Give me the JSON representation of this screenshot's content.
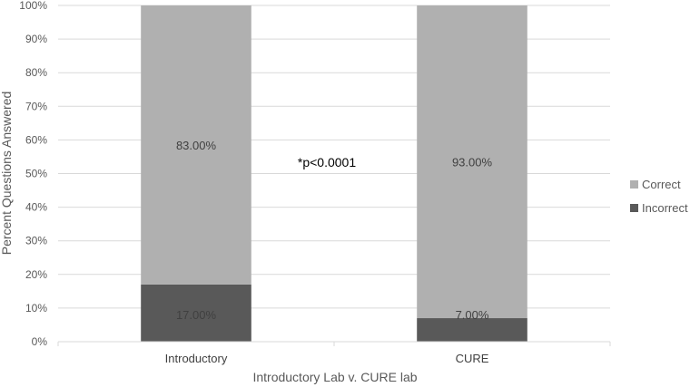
{
  "chart_data": {
    "type": "bar",
    "stacked": true,
    "categories": [
      "Introductory",
      "CURE"
    ],
    "series": [
      {
        "name": "Incorrect",
        "values": [
          17.0,
          7.0
        ],
        "labels": [
          "17.00%",
          "7.00%"
        ],
        "color": "#595959"
      },
      {
        "name": "Correct",
        "values": [
          83.0,
          93.0
        ],
        "labels": [
          "83.00%",
          "93.00%"
        ],
        "color": "#b0b0b0"
      }
    ],
    "xlabel": "Introductory Lab v. CURE lab",
    "ylabel": "Percent Questions Answered",
    "ylim": [
      0,
      100
    ],
    "yticks": [
      "0%",
      "10%",
      "20%",
      "30%",
      "40%",
      "50%",
      "60%",
      "70%",
      "80%",
      "90%",
      "100%"
    ],
    "grid": true,
    "legend_position": "right",
    "annotation": "*p<0.0001"
  }
}
